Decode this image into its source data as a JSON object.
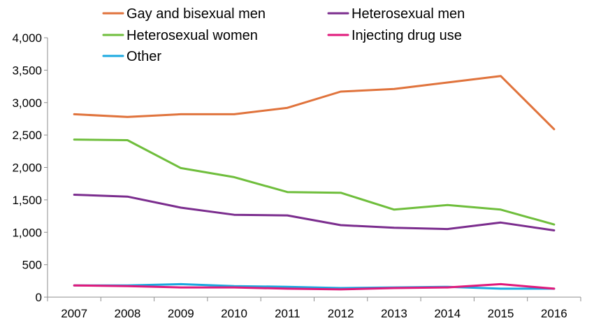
{
  "chart_data": {
    "type": "line",
    "title": "",
    "xlabel": "",
    "ylabel": "",
    "x": [
      "2007",
      "2008",
      "2009",
      "2010",
      "2011",
      "2012",
      "2013",
      "2014",
      "2015",
      "2016"
    ],
    "ylim": [
      0,
      4000
    ],
    "yticks": [
      0,
      500,
      1000,
      1500,
      2000,
      2500,
      3000,
      3500,
      4000
    ],
    "ytick_labels": [
      "0",
      "500",
      "1,000",
      "1,500",
      "2,000",
      "2,500",
      "3,000",
      "3,500",
      "4,000"
    ],
    "grid": false,
    "legend_position": "top",
    "series": [
      {
        "name": "Gay and bisexual men",
        "color": "#e0733c",
        "values": [
          2820,
          2780,
          2820,
          2820,
          2920,
          3170,
          3210,
          3310,
          3410,
          2590
        ]
      },
      {
        "name": "Heterosexual men",
        "color": "#7b2d8e",
        "values": [
          1580,
          1550,
          1380,
          1270,
          1260,
          1110,
          1070,
          1050,
          1150,
          1030
        ]
      },
      {
        "name": "Heterosexual women",
        "color": "#6fbe3c",
        "values": [
          2430,
          2420,
          1990,
          1850,
          1620,
          1610,
          1350,
          1420,
          1350,
          1120
        ]
      },
      {
        "name": "Injecting drug use",
        "color": "#e0197b",
        "values": [
          180,
          170,
          150,
          150,
          130,
          120,
          140,
          150,
          200,
          130
        ]
      },
      {
        "name": "Other",
        "color": "#1aa9e0",
        "values": [
          180,
          180,
          200,
          170,
          160,
          140,
          150,
          160,
          130,
          130
        ]
      }
    ]
  }
}
